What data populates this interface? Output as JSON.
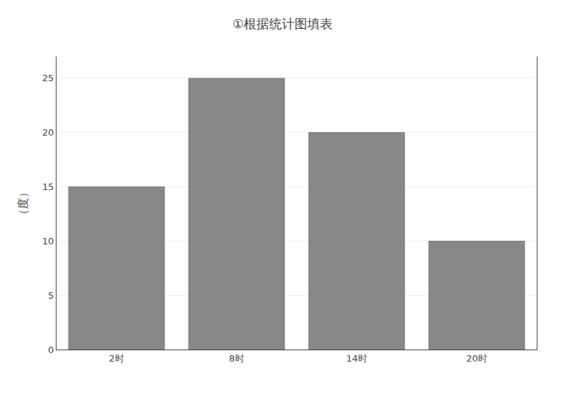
{
  "chart_data": {
    "type": "bar",
    "title": "①根据统计图填表",
    "ylabel": "（度）",
    "categories": [
      "2时",
      "8时",
      "14时",
      "20时"
    ],
    "values": [
      15,
      25,
      20,
      10
    ],
    "color": "#888888",
    "ylim": [
      0,
      27
    ],
    "yticks": [
      0,
      5,
      10,
      15,
      20,
      25
    ],
    "grid": true
  }
}
